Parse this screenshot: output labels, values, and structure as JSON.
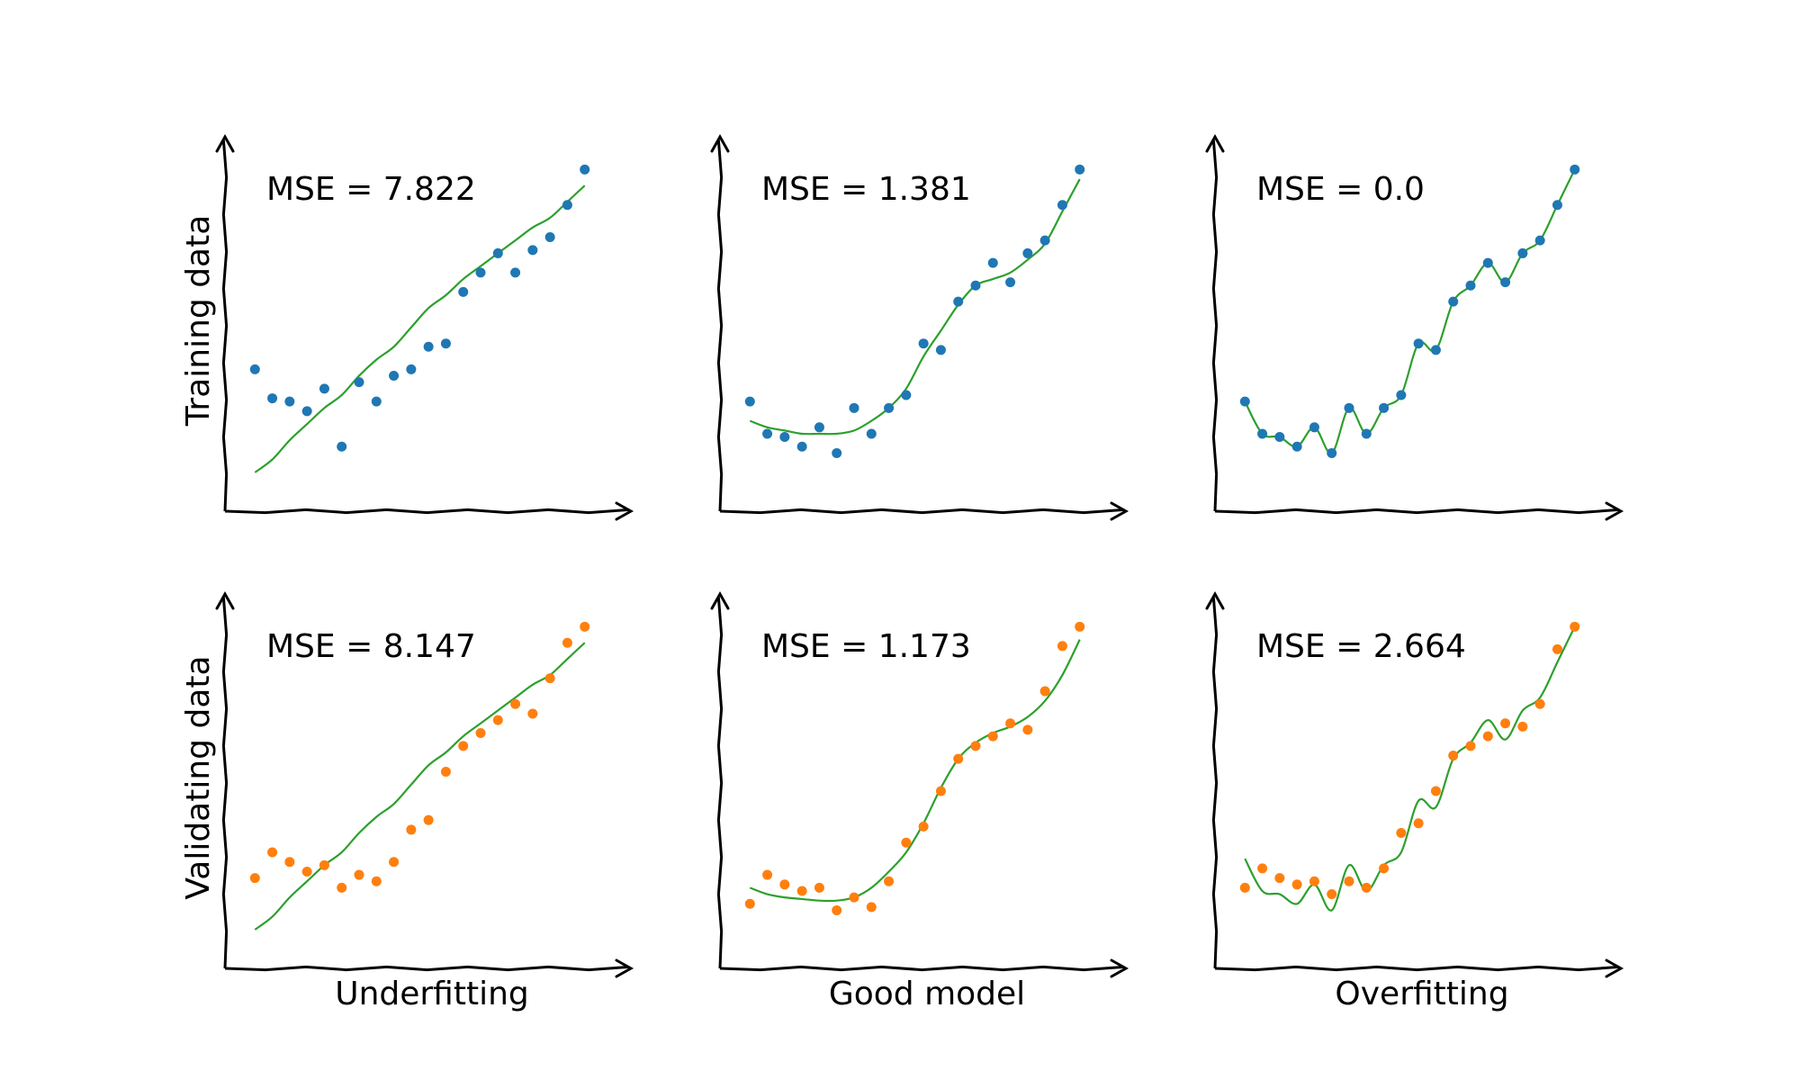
{
  "figure": {
    "row_labels": [
      "Training data",
      "Validating data"
    ],
    "column_labels": [
      "Underfitting",
      "Good model",
      "Overfitting"
    ]
  },
  "colors": {
    "training_points": "#1f77b4",
    "validating_points": "#ff7f0e",
    "model_curve": "#2ca02c",
    "axes": "#000000"
  },
  "chart_data": [
    {
      "type": "scatter",
      "row": "Training data",
      "column": "Underfitting",
      "annotation": "MSE = 7.822",
      "points": {
        "x": [
          0,
          1,
          2,
          3,
          4,
          5,
          6,
          7,
          8,
          9,
          10,
          11,
          12,
          13,
          14,
          15,
          16,
          17,
          18,
          19
        ],
        "y": [
          3.4,
          2.5,
          2.4,
          2.1,
          2.8,
          1.0,
          3.0,
          2.4,
          3.2,
          3.4,
          4.1,
          4.2,
          5.8,
          6.4,
          7.0,
          6.4,
          7.1,
          7.5,
          8.5,
          9.6
        ]
      },
      "fit": {
        "x": [
          0,
          1,
          2,
          3,
          4,
          5,
          6,
          7,
          8,
          9,
          10,
          11,
          12,
          13,
          14,
          15,
          16,
          17,
          18,
          19
        ],
        "y": [
          0.2,
          0.6,
          1.2,
          1.7,
          2.2,
          2.6,
          3.2,
          3.7,
          4.1,
          4.7,
          5.3,
          5.7,
          6.2,
          6.6,
          7.0,
          7.4,
          7.8,
          8.1,
          8.6,
          9.1
        ]
      },
      "xlim": [
        -1,
        20
      ],
      "ylim": [
        -0.5,
        10
      ]
    },
    {
      "type": "scatter",
      "row": "Training data",
      "column": "Good model",
      "annotation": "MSE = 1.381",
      "points": {
        "x": [
          0,
          1,
          2,
          3,
          4,
          5,
          6,
          7,
          8,
          9,
          10,
          11,
          12,
          13,
          14,
          15,
          16,
          17,
          18,
          19
        ],
        "y": [
          2.4,
          1.4,
          1.3,
          1.0,
          1.6,
          0.8,
          2.2,
          1.4,
          2.2,
          2.6,
          4.2,
          4.0,
          5.5,
          6.0,
          6.7,
          6.1,
          7.0,
          7.4,
          8.5,
          9.6
        ]
      },
      "fit": {
        "x": [
          0,
          1,
          2,
          3,
          4,
          5,
          6,
          7,
          8,
          9,
          10,
          11,
          12,
          13,
          14,
          15,
          16,
          17,
          18,
          19
        ],
        "y": [
          1.8,
          1.6,
          1.5,
          1.4,
          1.4,
          1.4,
          1.5,
          1.8,
          2.2,
          2.8,
          3.8,
          4.6,
          5.4,
          6.0,
          6.2,
          6.4,
          6.8,
          7.3,
          8.3,
          9.3
        ]
      },
      "xlim": [
        -1,
        20
      ],
      "ylim": [
        -0.5,
        10
      ]
    },
    {
      "type": "scatter",
      "row": "Training data",
      "column": "Overfitting",
      "annotation": "MSE = 0.0",
      "points": {
        "x": [
          0,
          1,
          2,
          3,
          4,
          5,
          6,
          7,
          8,
          9,
          10,
          11,
          12,
          13,
          14,
          15,
          16,
          17,
          18,
          19
        ],
        "y": [
          2.4,
          1.4,
          1.3,
          1.0,
          1.6,
          0.8,
          2.2,
          1.4,
          2.2,
          2.6,
          4.2,
          4.0,
          5.5,
          6.0,
          6.7,
          6.1,
          7.0,
          7.4,
          8.5,
          9.6
        ]
      },
      "fit": {
        "x": [
          0,
          1,
          2,
          3,
          4,
          5,
          6,
          7,
          8,
          9,
          10,
          11,
          12,
          13,
          14,
          15,
          16,
          17,
          18,
          19
        ],
        "y": [
          2.4,
          1.4,
          1.3,
          1.0,
          1.6,
          0.8,
          2.2,
          1.4,
          2.2,
          2.6,
          4.2,
          4.0,
          5.5,
          6.0,
          6.7,
          6.1,
          7.0,
          7.4,
          8.5,
          9.6
        ]
      },
      "xlim": [
        -1,
        20
      ],
      "ylim": [
        -0.5,
        10
      ]
    },
    {
      "type": "scatter",
      "row": "Validating data",
      "column": "Underfitting",
      "annotation": "MSE = 8.147",
      "points": {
        "x": [
          0,
          1,
          2,
          3,
          4,
          5,
          6,
          7,
          8,
          9,
          10,
          11,
          12,
          13,
          14,
          15,
          16,
          17,
          18,
          19
        ],
        "y": [
          1.8,
          2.6,
          2.3,
          2.0,
          2.2,
          1.5,
          1.9,
          1.7,
          2.3,
          3.3,
          3.6,
          5.1,
          5.9,
          6.3,
          6.7,
          7.2,
          6.9,
          8.0,
          9.1,
          9.6
        ]
      },
      "fit": {
        "x": [
          0,
          1,
          2,
          3,
          4,
          5,
          6,
          7,
          8,
          9,
          10,
          11,
          12,
          13,
          14,
          15,
          16,
          17,
          18,
          19
        ],
        "y": [
          0.2,
          0.6,
          1.2,
          1.7,
          2.2,
          2.6,
          3.2,
          3.7,
          4.1,
          4.7,
          5.3,
          5.7,
          6.2,
          6.6,
          7.0,
          7.4,
          7.8,
          8.1,
          8.6,
          9.1
        ]
      },
      "xlim": [
        -1,
        20
      ],
      "ylim": [
        -0.5,
        10
      ]
    },
    {
      "type": "scatter",
      "row": "Validating data",
      "column": "Good model",
      "annotation": "MSE = 1.173",
      "points": {
        "x": [
          0,
          1,
          2,
          3,
          4,
          5,
          6,
          7,
          8,
          9,
          10,
          11,
          12,
          13,
          14,
          15,
          16,
          17,
          18,
          19
        ],
        "y": [
          1.0,
          1.9,
          1.6,
          1.4,
          1.5,
          0.8,
          1.2,
          0.9,
          1.7,
          2.9,
          3.4,
          4.5,
          5.5,
          5.9,
          6.2,
          6.6,
          6.4,
          7.6,
          9.0,
          9.6
        ]
      },
      "fit": {
        "x": [
          0,
          1,
          2,
          3,
          4,
          5,
          6,
          7,
          8,
          9,
          10,
          11,
          12,
          13,
          14,
          15,
          16,
          17,
          18,
          19
        ],
        "y": [
          1.5,
          1.3,
          1.2,
          1.15,
          1.1,
          1.1,
          1.2,
          1.5,
          2.0,
          2.6,
          3.5,
          4.6,
          5.5,
          6.0,
          6.3,
          6.5,
          6.8,
          7.3,
          8.1,
          9.2
        ]
      },
      "xlim": [
        -1,
        20
      ],
      "ylim": [
        -0.5,
        10
      ]
    },
    {
      "type": "scatter",
      "row": "Validating data",
      "column": "Overfitting",
      "annotation": "MSE = 2.664",
      "points": {
        "x": [
          0,
          1,
          2,
          3,
          4,
          5,
          6,
          7,
          8,
          9,
          10,
          11,
          12,
          13,
          14,
          15,
          16,
          17,
          18,
          19
        ],
        "y": [
          1.5,
          2.1,
          1.8,
          1.6,
          1.7,
          1.3,
          1.7,
          1.5,
          2.1,
          3.2,
          3.5,
          4.5,
          5.6,
          5.9,
          6.2,
          6.6,
          6.5,
          7.2,
          8.9,
          9.6
        ]
      },
      "fit": {
        "x": [
          0,
          1,
          2,
          3,
          4,
          5,
          6,
          7,
          8,
          9,
          10,
          11,
          12,
          13,
          14,
          15,
          16,
          17,
          18,
          19
        ],
        "y": [
          2.4,
          1.4,
          1.3,
          1.0,
          1.6,
          0.8,
          2.2,
          1.4,
          2.2,
          2.6,
          4.2,
          4.0,
          5.5,
          6.0,
          6.7,
          6.1,
          7.0,
          7.4,
          8.5,
          9.6
        ]
      },
      "xlim": [
        -1,
        20
      ],
      "ylim": [
        -0.5,
        10
      ]
    }
  ]
}
